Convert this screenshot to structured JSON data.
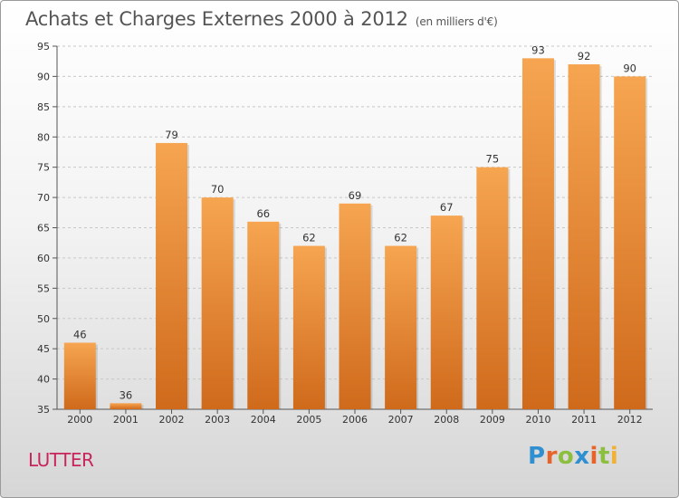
{
  "title": "Achats et Charges Externes 2000 à 2012",
  "subtitle": "(en milliers d'€)",
  "commune": "LUTTER",
  "logo": {
    "letters": [
      {
        "ch": "P",
        "color": "#2f8fd0"
      },
      {
        "ch": "r",
        "color": "#e8632a"
      },
      {
        "ch": "o",
        "color": "#8cbf3f"
      },
      {
        "ch": "x",
        "color": "#2f8fd0"
      },
      {
        "ch": "i",
        "color": "#e8632a"
      },
      {
        "ch": "t",
        "color": "#8cbf3f"
      },
      {
        "ch": "i",
        "color": "#f2b134"
      }
    ]
  },
  "chart_data": {
    "type": "bar",
    "categories": [
      "2000",
      "2001",
      "2002",
      "2003",
      "2004",
      "2005",
      "2006",
      "2007",
      "2008",
      "2009",
      "2010",
      "2011",
      "2012"
    ],
    "values": [
      46,
      36,
      79,
      70,
      66,
      62,
      69,
      62,
      67,
      75,
      93,
      92,
      90
    ],
    "ylim": [
      35,
      95
    ],
    "yticks": [
      35,
      40,
      45,
      50,
      55,
      60,
      65,
      70,
      75,
      80,
      85,
      90,
      95
    ],
    "grid": true,
    "bar_color_top": "#f6a551",
    "bar_color_bottom": "#cf6a1b"
  }
}
